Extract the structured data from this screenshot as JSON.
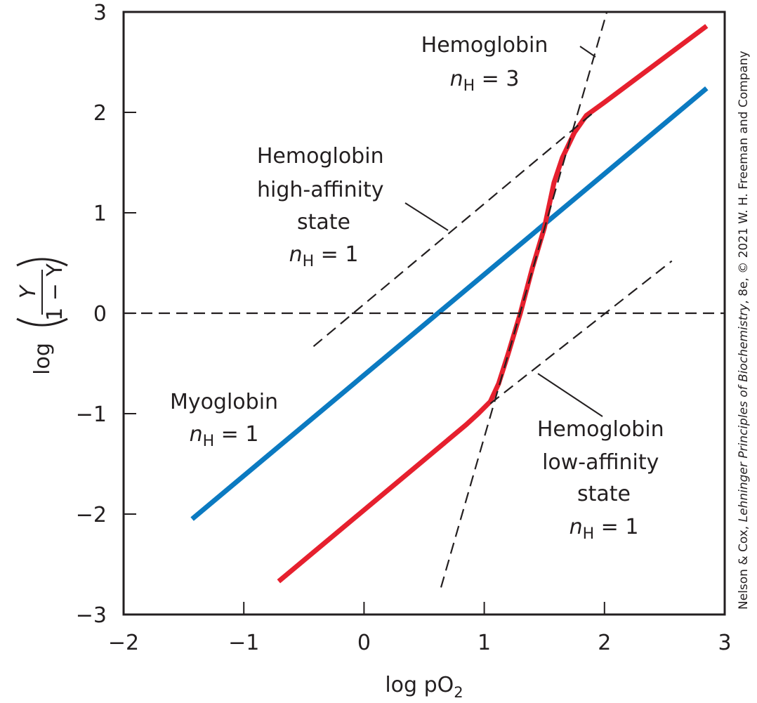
{
  "chart_data": {
    "type": "line",
    "xlabel": "log pO",
    "xlabel_sub": "2",
    "ylabel_prefix": "log",
    "ylabel_num": "Y",
    "ylabel_den": "1 − Y",
    "xlim": [
      -2,
      3
    ],
    "ylim": [
      -3,
      3
    ],
    "x_ticks": [
      -2,
      -1,
      0,
      1,
      2,
      3
    ],
    "x_tick_labels": [
      "−2",
      "−1",
      "0",
      "1",
      "2",
      "3"
    ],
    "y_ticks": [
      -3,
      -2,
      -1,
      0,
      1,
      2,
      3
    ],
    "y_tick_labels": [
      "−3",
      "−2",
      "−1",
      "0",
      "1",
      "2",
      "3"
    ],
    "grid": false,
    "series": [
      {
        "name": "Myoglobin",
        "color": "#0b7ac1",
        "style": "solid",
        "x": [
          -1.43,
          2.85
        ],
        "y": [
          -2.05,
          2.24
        ]
      },
      {
        "name": "Hemoglobin",
        "color": "#e6202e",
        "style": "solid",
        "x": [
          -0.71,
          0.5,
          0.85,
          0.95,
          1.05,
          1.12,
          1.2,
          1.3,
          1.4,
          1.5,
          1.58,
          1.65,
          1.75,
          1.85,
          2.0,
          2.85
        ],
        "y": [
          -2.67,
          -1.46,
          -1.11,
          -1.0,
          -0.88,
          -0.7,
          -0.4,
          0.0,
          0.45,
          0.85,
          1.3,
          1.55,
          1.8,
          1.97,
          2.1,
          2.86
        ]
      },
      {
        "name": "",
        "color": "#231f20",
        "style": "dashed",
        "x": [
          -2,
          3
        ],
        "y": [
          0,
          0
        ]
      },
      {
        "name": "",
        "color": "#231f20",
        "style": "dashed",
        "x": [
          -0.42,
          1.9
        ],
        "y": [
          -0.33,
          1.99
        ]
      },
      {
        "name": "",
        "color": "#231f20",
        "style": "dashed",
        "x": [
          1.05,
          2.56
        ],
        "y": [
          -0.9,
          0.52
        ]
      },
      {
        "name": "",
        "color": "#231f20",
        "style": "dashed",
        "x": [
          0.64,
          2.02
        ],
        "y": [
          -2.73,
          3.0
        ]
      }
    ],
    "annotations": [
      {
        "lines": [
          "Hemoglobin",
          "nH = 3"
        ]
      },
      {
        "lines": [
          "Hemoglobin",
          "high-affinity",
          "state",
          "nH = 1"
        ]
      },
      {
        "lines": [
          "Myoglobin",
          "nH = 1"
        ]
      },
      {
        "lines": [
          "Hemoglobin",
          "low-affinity",
          "state",
          "nH = 1"
        ]
      }
    ],
    "credit": {
      "pre": "Nelson & Cox, ",
      "italic": "Lehninger Principles of Biochemistry",
      "mid": ", 8e, © 2021 W. H. Freeman and Company"
    }
  }
}
